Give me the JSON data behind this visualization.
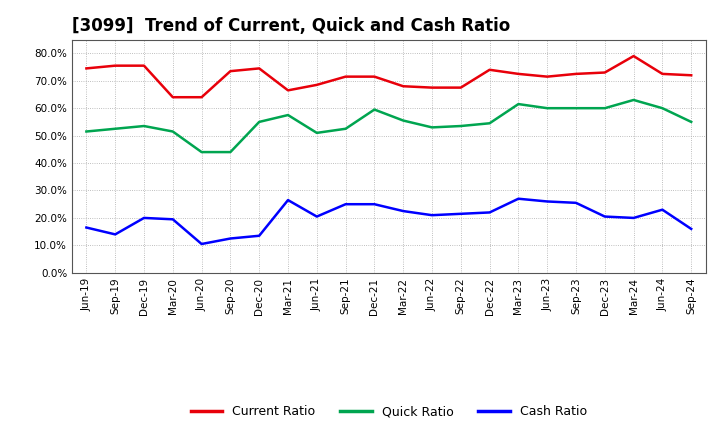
{
  "title": "[3099]  Trend of Current, Quick and Cash Ratio",
  "x_labels": [
    "Jun-19",
    "Sep-19",
    "Dec-19",
    "Mar-20",
    "Jun-20",
    "Sep-20",
    "Dec-20",
    "Mar-21",
    "Jun-21",
    "Sep-21",
    "Dec-21",
    "Mar-22",
    "Jun-22",
    "Sep-22",
    "Dec-22",
    "Mar-23",
    "Jun-23",
    "Sep-23",
    "Dec-23",
    "Mar-24",
    "Jun-24",
    "Sep-24"
  ],
  "current_ratio": [
    74.5,
    75.5,
    75.5,
    64.0,
    64.0,
    73.5,
    74.5,
    66.5,
    68.5,
    71.5,
    71.5,
    68.0,
    67.5,
    67.5,
    74.0,
    72.5,
    71.5,
    72.5,
    73.0,
    79.0,
    72.5,
    72.0
  ],
  "quick_ratio": [
    51.5,
    52.5,
    53.5,
    51.5,
    44.0,
    44.0,
    55.0,
    57.5,
    51.0,
    52.5,
    59.5,
    55.5,
    53.0,
    53.5,
    54.5,
    61.5,
    60.0,
    60.0,
    60.0,
    63.0,
    60.0,
    55.0
  ],
  "cash_ratio": [
    16.5,
    14.0,
    20.0,
    19.5,
    10.5,
    12.5,
    13.5,
    26.5,
    20.5,
    25.0,
    25.0,
    22.5,
    21.0,
    21.5,
    22.0,
    27.0,
    26.0,
    25.5,
    20.5,
    20.0,
    23.0,
    16.0
  ],
  "current_color": "#e8000a",
  "quick_color": "#00a550",
  "cash_color": "#0000ff",
  "bg_color": "#ffffff",
  "plot_bg_color": "#ffffff",
  "grid_color": "#aaaaaa",
  "ylim": [
    0,
    85
  ],
  "yticks": [
    0,
    10,
    20,
    30,
    40,
    50,
    60,
    70,
    80
  ],
  "line_width": 1.8,
  "title_fontsize": 12,
  "tick_fontsize": 7.5,
  "legend_fontsize": 9
}
